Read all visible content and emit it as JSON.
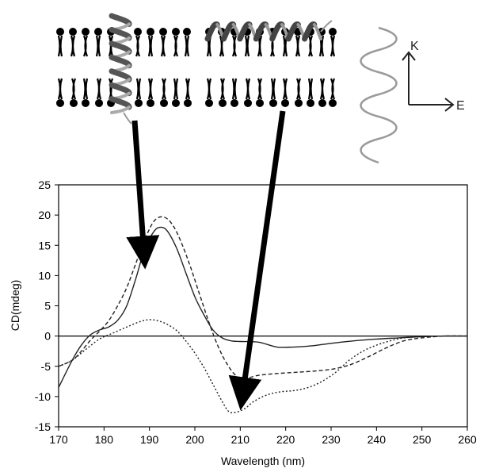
{
  "axis_labels": {
    "k": "K",
    "e": "E"
  },
  "chart_data": {
    "type": "line",
    "xlabel": "Wavelength (nm)",
    "ylabel": "CD(mdeg)",
    "xlim": [
      170,
      260
    ],
    "ylim": [
      -15,
      25
    ],
    "x_ticks": [
      170,
      180,
      190,
      200,
      210,
      220,
      230,
      240,
      250,
      260
    ],
    "y_ticks": [
      -15,
      -10,
      -5,
      0,
      5,
      10,
      15,
      20,
      25
    ],
    "grid": false,
    "legend": "none",
    "series": [
      {
        "style": "solid",
        "x": [
          170,
          173,
          175,
          177,
          179,
          181,
          183,
          185,
          187,
          189,
          191,
          192.5,
          194,
          196,
          198,
          200,
          202,
          204,
          206,
          208,
          210,
          214,
          218,
          222,
          226,
          230,
          235,
          240,
          245,
          250,
          255,
          260
        ],
        "y": [
          -8.5,
          -4.0,
          -1.5,
          0.2,
          1.0,
          1.5,
          2.6,
          5.0,
          9.5,
          14.5,
          17.3,
          18.0,
          17.3,
          14.5,
          10.5,
          6.5,
          3.5,
          1.0,
          -0.3,
          -0.8,
          -0.9,
          -1.0,
          -1.8,
          -1.8,
          -1.6,
          -1.2,
          -0.8,
          -0.5,
          -0.3,
          -0.1,
          0,
          0
        ]
      },
      {
        "style": "dashed",
        "x": [
          170,
          173,
          175,
          177,
          179,
          181,
          183,
          185,
          187,
          189,
          191,
          193,
          195,
          197,
          199,
          201,
          203,
          205,
          207,
          209,
          211,
          214,
          218,
          222,
          226,
          230,
          234,
          238,
          242,
          246,
          250,
          255,
          260
        ],
        "y": [
          -5.0,
          -4.0,
          -2.5,
          -0.7,
          0.8,
          2.5,
          5.0,
          8.0,
          12.0,
          16.0,
          19.0,
          19.7,
          18.5,
          15.5,
          11.5,
          7.0,
          2.5,
          -1.5,
          -4.5,
          -6.5,
          -7.0,
          -6.5,
          -6.2,
          -6.0,
          -5.8,
          -5.5,
          -4.8,
          -3.5,
          -2.0,
          -0.8,
          -0.3,
          0,
          0
        ]
      },
      {
        "style": "dotted",
        "x": [
          170,
          173,
          176,
          179,
          182,
          185,
          188,
          190,
          192,
          194,
          196,
          198,
          200,
          202,
          204,
          206,
          207.5,
          209,
          211,
          213,
          216,
          219,
          222,
          225,
          228,
          231,
          234,
          237,
          240,
          243,
          246,
          250,
          255,
          260
        ],
        "y": [
          -5.0,
          -4.0,
          -2.2,
          -0.5,
          0.5,
          1.5,
          2.4,
          2.7,
          2.5,
          1.9,
          0.9,
          -0.8,
          -2.8,
          -5.2,
          -8.0,
          -10.8,
          -12.5,
          -12.6,
          -12.0,
          -10.8,
          -9.7,
          -9.2,
          -9.0,
          -8.5,
          -7.5,
          -6.0,
          -4.0,
          -2.5,
          -1.5,
          -0.8,
          -0.3,
          -0.1,
          0,
          0
        ]
      }
    ]
  }
}
